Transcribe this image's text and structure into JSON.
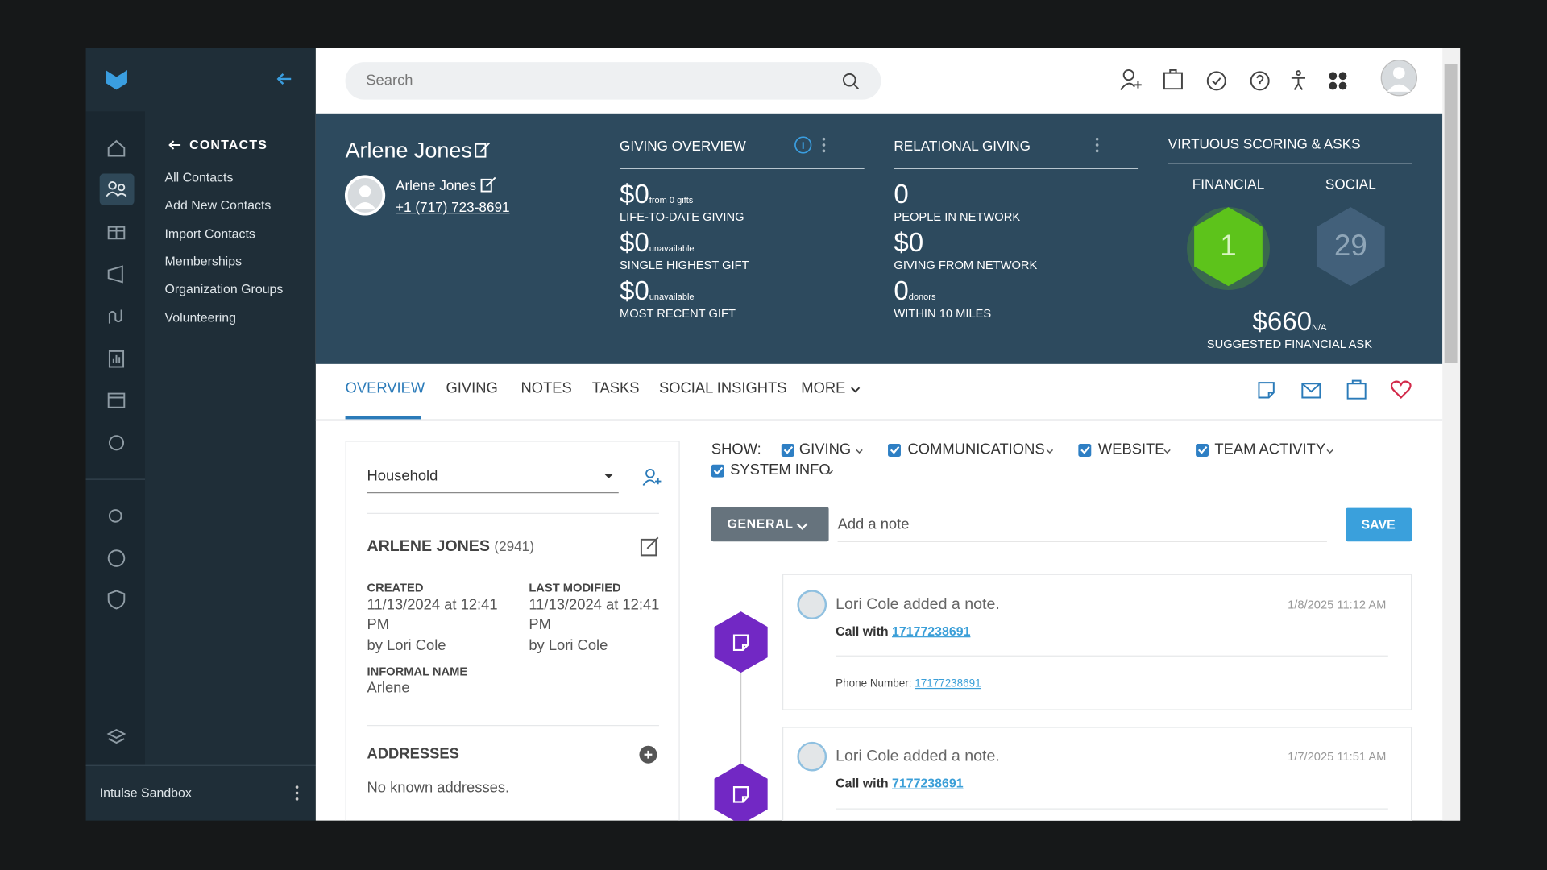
{
  "sidebar": {
    "nav_title": "CONTACTS",
    "nav_items": [
      "All Contacts",
      "Add New Contacts",
      "Import Contacts",
      "Memberships",
      "Organization Groups",
      "Volunteering"
    ],
    "footer": "Intulse Sandbox"
  },
  "topbar": {
    "search_placeholder": "Search"
  },
  "profile": {
    "name": "Arlene Jones",
    "contact_name": "Arlene Jones",
    "phone": "+1 (717) 723-8691"
  },
  "giving_overview": {
    "title": "GIVING OVERVIEW",
    "items": [
      {
        "value": "$0",
        "note": "from 0 gifts",
        "label": "LIFE-TO-DATE GIVING"
      },
      {
        "value": "$0",
        "note": "unavailable",
        "label": "SINGLE HIGHEST GIFT"
      },
      {
        "value": "$0",
        "note": "unavailable",
        "label": "MOST RECENT GIFT"
      }
    ]
  },
  "relational_giving": {
    "title": "RELATIONAL GIVING",
    "items": [
      {
        "value": "0",
        "label": "PEOPLE IN NETWORK"
      },
      {
        "value": "$0",
        "label": "GIVING FROM NETWORK"
      },
      {
        "value": "0",
        "note": "donors",
        "label": "WITHIN 10 MILES"
      }
    ]
  },
  "scoring": {
    "title": "VIRTUOUS SCORING & ASKS",
    "financial_label": "FINANCIAL",
    "financial_score": 1,
    "social_label": "SOCIAL",
    "social_score": 29,
    "ask_value": "$660",
    "ask_note": "N/A",
    "ask_label": "SUGGESTED FINANCIAL ASK"
  },
  "tabs": [
    "OVERVIEW",
    "GIVING",
    "NOTES",
    "TASKS",
    "SOCIAL INSIGHTS",
    "MORE"
  ],
  "details": {
    "household": "Household",
    "name": "ARLENE JONES",
    "id": "(2941)",
    "created_label": "CREATED",
    "created_value": "11/13/2024 at 12:41 PM",
    "created_by": "by Lori Cole",
    "modified_label": "LAST MODIFIED",
    "modified_value": "11/13/2024 at 12:41 PM",
    "modified_by": "by Lori Cole",
    "informal_name_label": "INFORMAL NAME",
    "informal_name": "Arlene",
    "addresses_title": "ADDRESSES",
    "addresses_empty": "No known addresses."
  },
  "filters": {
    "show_label": "SHOW:",
    "options": [
      "GIVING",
      "COMMUNICATIONS",
      "WEBSITE",
      "TEAM ACTIVITY",
      "SYSTEM INFO"
    ]
  },
  "note_form": {
    "category": "GENERAL",
    "placeholder": "Add a note",
    "save": "SAVE"
  },
  "timeline": [
    {
      "author_action": "Lori Cole added a note.",
      "date": "1/8/2025 11:12 AM",
      "call_label": "Call with",
      "call_number": "17177238691",
      "phone_label": "Phone Number:",
      "phone_number": "17177238691"
    },
    {
      "author_action": "Lori Cole added a note.",
      "date": "1/7/2025 11:51 AM",
      "call_label": "Call with",
      "call_number": "7177238691"
    }
  ]
}
